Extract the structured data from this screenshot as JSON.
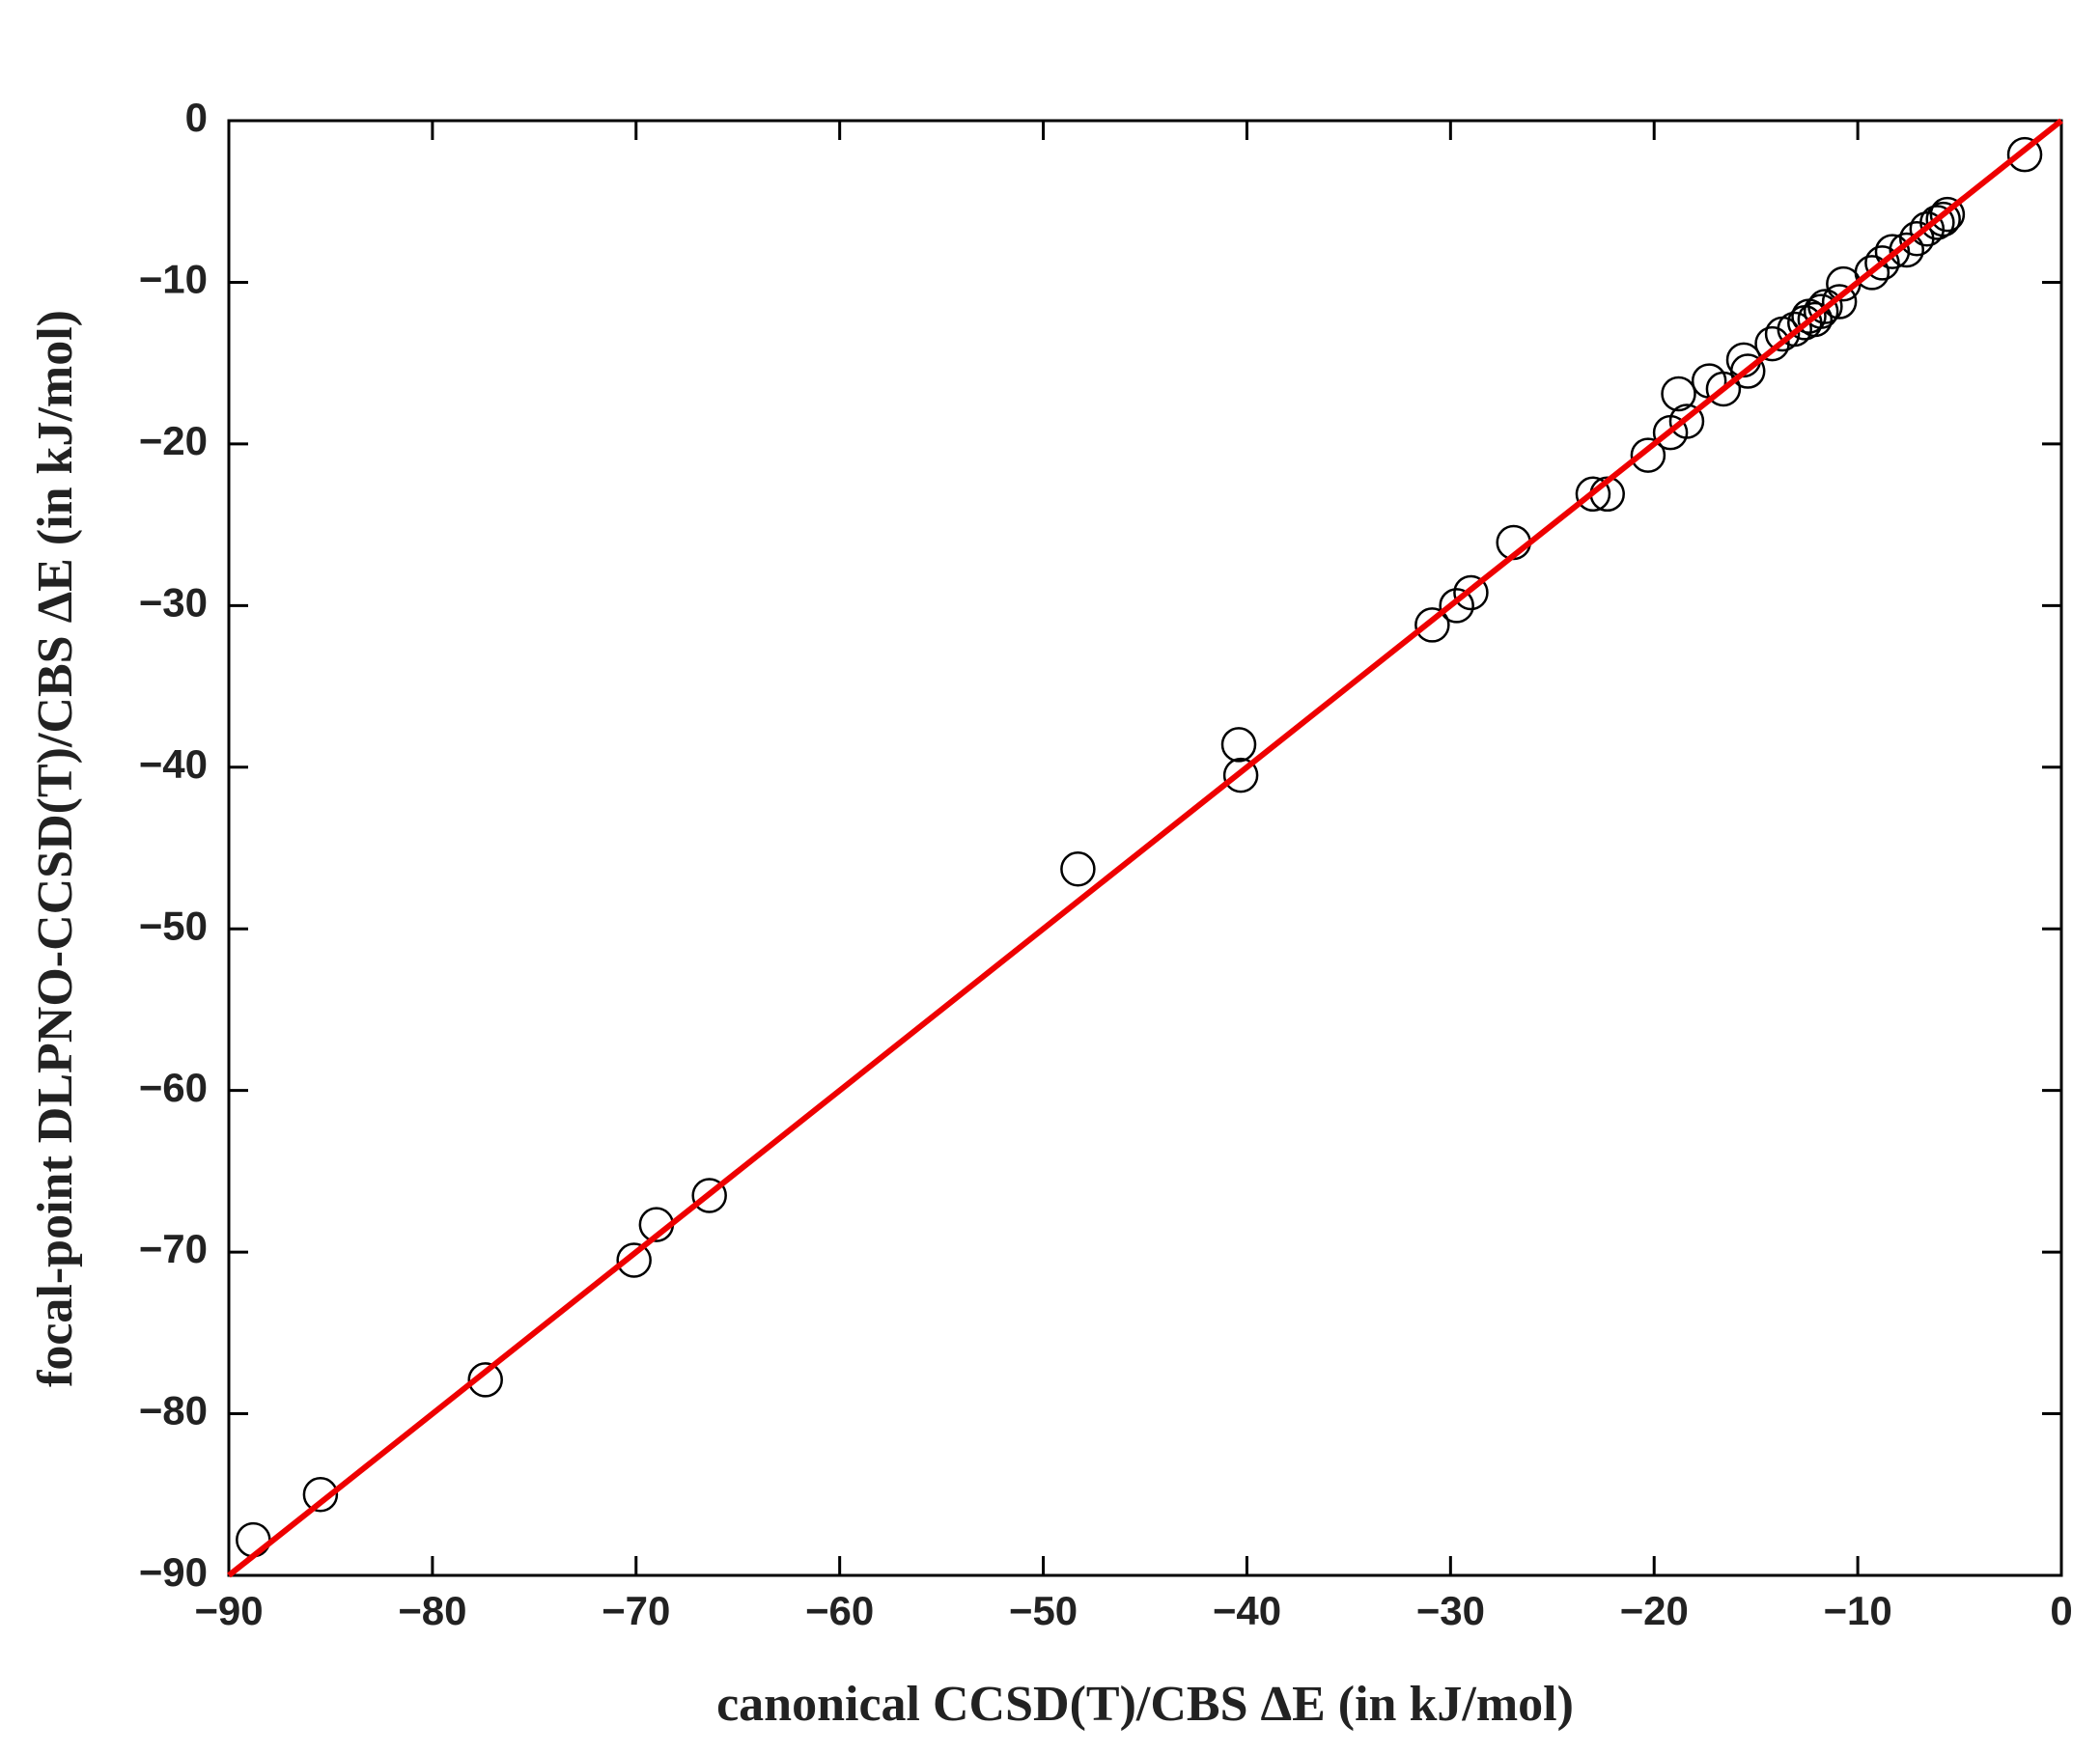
{
  "chart_data": {
    "type": "scatter",
    "xlabel": "canonical CCSD(T)/CBS  ΔE (in kJ/mol)",
    "ylabel": "focal-point  DLPNO-CCSD(T)/CBS  ΔE (in kJ/mol)",
    "xlim": [
      -90,
      0
    ],
    "ylim": [
      -90,
      0
    ],
    "xticks": [
      {
        "value": -90,
        "label": "−90"
      },
      {
        "value": -80,
        "label": "−80"
      },
      {
        "value": -70,
        "label": "−70"
      },
      {
        "value": -60,
        "label": "−60"
      },
      {
        "value": -50,
        "label": "−50"
      },
      {
        "value": -40,
        "label": "−40"
      },
      {
        "value": -30,
        "label": "−30"
      },
      {
        "value": -20,
        "label": "−20"
      },
      {
        "value": -10,
        "label": "−10"
      },
      0
    ],
    "yticks": [
      {
        "value": -90,
        "label": "−90"
      },
      {
        "value": -80,
        "label": "−80"
      },
      {
        "value": -70,
        "label": "−70"
      },
      {
        "value": -60,
        "label": "−60"
      },
      {
        "value": -50,
        "label": "−50"
      },
      {
        "value": -40,
        "label": "−40"
      },
      {
        "value": -30,
        "label": "−30"
      },
      {
        "value": -20,
        "label": "−20"
      },
      {
        "value": -10,
        "label": "−10"
      },
      0
    ],
    "series": [
      {
        "color": "#000000",
        "x": [
          -88.8,
          -85.5,
          -77.4,
          -70.1,
          -69.0,
          -66.4,
          -48.3,
          -40.4,
          -40.3,
          -30.9,
          -29.7,
          -29.0,
          -26.9,
          -23.0,
          -22.3,
          -20.3,
          -19.2,
          -18.8,
          -18.4,
          -17.3,
          -16.6,
          -15.6,
          -15.4,
          -14.2,
          -13.7,
          -13.1,
          -12.6,
          -12.4,
          -12.1,
          -11.8,
          -11.6,
          -10.9,
          -10.7,
          -9.3,
          -8.8,
          -8.3,
          -7.6,
          -7.1,
          -6.6,
          -6.1,
          -5.8,
          -5.6,
          -1.8
        ],
        "values": [
          -87.8,
          -85.0,
          -77.9,
          -70.5,
          -68.3,
          -66.5,
          -46.3,
          -38.6,
          -40.5,
          -31.2,
          -30.0,
          -29.2,
          -26.1,
          -23.1,
          -23.1,
          -20.7,
          -19.3,
          -16.9,
          -18.6,
          -16.1,
          -16.6,
          -14.8,
          -15.5,
          -13.8,
          -13.2,
          -12.9,
          -12.5,
          -12.1,
          -12.3,
          -11.8,
          -11.5,
          -11.2,
          -10.1,
          -9.4,
          -8.8,
          -8.1,
          -8.0,
          -7.3,
          -6.7,
          -6.3,
          -6.1,
          -5.8,
          -2.1
        ]
      }
    ],
    "diagonal": {
      "x": [
        -90,
        0
      ],
      "values": [
        -90,
        0
      ],
      "color": "#ee0000"
    }
  }
}
